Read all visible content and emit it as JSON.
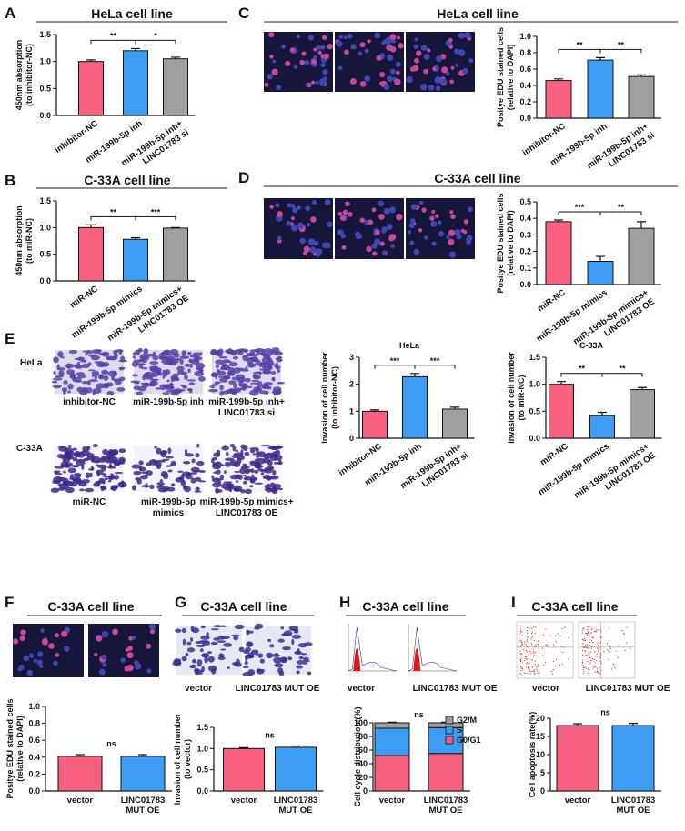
{
  "panels": [
    {
      "letter": "A",
      "title": "HeLa cell line"
    },
    {
      "letter": "B",
      "title": "C-33A cell line"
    },
    {
      "letter": "C",
      "title": "HeLa cell line"
    },
    {
      "letter": "D",
      "title": "C-33A cell line"
    },
    {
      "letter": "E"
    },
    {
      "letter": "F",
      "title": "C-33A cell line"
    },
    {
      "letter": "G",
      "title": "C-33A cell line"
    },
    {
      "letter": "H",
      "title": "C-33A cell line"
    },
    {
      "letter": "I",
      "title": "C-33A cell line"
    }
  ],
  "image_labels": {
    "E_rows": [
      "HeLa",
      "C-33A"
    ],
    "E_captions": [
      [
        "inhibitor-NC"
      ],
      [
        "miR-199b-5p inh"
      ],
      [
        "miR-199b-5p inh+",
        "LINC01783 si"
      ],
      [
        "miR-NC"
      ],
      [
        "miR-199b-5p",
        "mimics"
      ],
      [
        "miR-199b-5p mimics+",
        "LINC01783 OE"
      ]
    ],
    "G": [
      "vector",
      "LINC01783 MUT OE"
    ],
    "H": [
      "vector",
      "LINC01783 MUT OE"
    ],
    "I": [
      "vector",
      "LINC01783 MUT OE"
    ]
  },
  "chart_data": [
    {
      "type": "bar",
      "y_label": [
        "450nm absorption",
        "(to inhibitor-NC)"
      ],
      "categories": [
        [
          "inhibitor-NC"
        ],
        [
          "miR-199b-5p inh"
        ],
        [
          "miR-199b-5p inh+",
          "LINC01783 si"
        ]
      ],
      "values": [
        1.0,
        1.2,
        1.05
      ],
      "errors": [
        0.03,
        0.04,
        0.03
      ],
      "colors": [
        "#f7617f",
        "#3d9df5",
        "#a0a0a0"
      ],
      "ylim": [
        0,
        1.5
      ],
      "yticks": [
        {
          "value": 0,
          "label": "0.0"
        },
        0.5,
        {
          "value": 1,
          "label": "1.0"
        },
        1.5
      ],
      "significance": [
        "**",
        "*"
      ]
    },
    {
      "type": "bar",
      "y_label": [
        "450nm absorption",
        "(to miR-NC)"
      ],
      "categories": [
        [
          "miR-NC"
        ],
        [
          "miR-199b-5p mimics"
        ],
        [
          "miR-199b-5p mimics+",
          "LINC01783 OE"
        ]
      ],
      "values": [
        1.0,
        0.78,
        0.99
      ],
      "errors": [
        0.05,
        0.03,
        0.01
      ],
      "colors": [
        "#f7617f",
        "#3d9df5",
        "#a0a0a0"
      ],
      "ylim": [
        0,
        1.5
      ],
      "yticks": [
        {
          "value": 0,
          "label": "0.0"
        },
        0.5,
        {
          "value": 1,
          "label": "1.0"
        },
        1.5
      ],
      "significance": [
        "**",
        "***"
      ]
    },
    {
      "type": "bar",
      "y_label": [
        "Positye EDU stained cells",
        "(relative to DAPI)"
      ],
      "categories": [
        [
          "inhibitor-NC"
        ],
        [
          "miR-199b-5p inh"
        ],
        [
          "miR-199b-5p inh+",
          "LINC01783 si"
        ]
      ],
      "values": [
        0.46,
        0.71,
        0.51
      ],
      "errors": [
        0.02,
        0.03,
        0.02
      ],
      "colors": [
        "#f7617f",
        "#3d9df5",
        "#a0a0a0"
      ],
      "ylim": [
        0,
        1
      ],
      "yticks": [
        {
          "value": 0,
          "label": "0.0"
        },
        0.2,
        0.4,
        0.6,
        0.8,
        {
          "value": 1,
          "label": "1.0"
        }
      ],
      "significance": [
        "**",
        "**"
      ]
    },
    {
      "type": "bar",
      "y_label": [
        "Positye EDU stained cells",
        "(relative to DAPI)"
      ],
      "categories": [
        [
          "miR-NC"
        ],
        [
          "miR-199b-5p mimics"
        ],
        [
          "miR-199b-5p mimics+",
          "LINC01783 OE"
        ]
      ],
      "values": [
        0.38,
        0.14,
        0.34
      ],
      "errors": [
        0.01,
        0.03,
        0.04
      ],
      "colors": [
        "#f7617f",
        "#3d9df5",
        "#a0a0a0"
      ],
      "ylim": [
        0,
        0.5
      ],
      "yticks": [
        {
          "value": 0,
          "label": "0.0"
        },
        0.1,
        0.2,
        0.3,
        0.4,
        0.5
      ],
      "significance": [
        "***",
        "**"
      ]
    },
    {
      "type": "bar",
      "title": "HeLa",
      "y_label": [
        "Invasion of cell number",
        "(to inhibitor-NC)"
      ],
      "categories": [
        [
          "inhibitor-NC"
        ],
        [
          "miR-199b-5p inh"
        ],
        [
          "miR-199b-5p inh+",
          "LINC01783 si"
        ]
      ],
      "values": [
        1.0,
        2.28,
        1.08
      ],
      "errors": [
        0.05,
        0.12,
        0.07
      ],
      "colors": [
        "#f7617f",
        "#3d9df5",
        "#a0a0a0"
      ],
      "ylim": [
        0,
        3
      ],
      "yticks": [
        0,
        1,
        2,
        3
      ],
      "significance": [
        "***",
        "***"
      ]
    },
    {
      "type": "bar",
      "title": "C-33A",
      "y_label": [
        "Invasion of cell number",
        "(to miR-NC)"
      ],
      "categories": [
        [
          "miR-NC"
        ],
        [
          "miR-199b-5p mimics"
        ],
        [
          "miR-199b-5p mimics+",
          "LINC01783 OE"
        ]
      ],
      "values": [
        1.0,
        0.42,
        0.9
      ],
      "errors": [
        0.05,
        0.06,
        0.04
      ],
      "colors": [
        "#f7617f",
        "#3d9df5",
        "#a0a0a0"
      ],
      "ylim": [
        0,
        1.5
      ],
      "yticks": [
        {
          "value": 0,
          "label": "0.0"
        },
        0.5,
        {
          "value": 1,
          "label": "1.0"
        },
        1.5
      ],
      "significance": [
        "**",
        "**"
      ]
    },
    {
      "type": "bar",
      "y_label": [
        "Positye EDU stained cells",
        "(relative to DAPI)"
      ],
      "categories": [
        [
          "vector"
        ],
        [
          "LINC01783",
          "MUT OE"
        ]
      ],
      "values": [
        0.41,
        0.41
      ],
      "errors": [
        0.02,
        0.02
      ],
      "colors": [
        "#f7617f",
        "#3d9df5"
      ],
      "ylim": [
        0,
        1
      ],
      "yticks": [
        {
          "value": 0,
          "label": "0.0"
        },
        0.2,
        0.4,
        0.6,
        0.8,
        {
          "value": 1,
          "label": "1.0"
        }
      ],
      "significance": [
        "ns"
      ]
    },
    {
      "type": "bar",
      "y_label": [
        "Invasion of cell number",
        "(to vector)"
      ],
      "categories": [
        [
          "vector"
        ],
        [
          "LINC01783",
          "MUT OE"
        ]
      ],
      "values": [
        1.0,
        1.03
      ],
      "errors": [
        0.02,
        0.03
      ],
      "colors": [
        "#f7617f",
        "#3d9df5"
      ],
      "ylim": [
        0,
        1.5
      ],
      "yticks": [
        {
          "value": 0,
          "label": "0.0"
        },
        0.5,
        {
          "value": 1,
          "label": "1.0"
        },
        1.5
      ],
      "significance": [
        "ns"
      ]
    },
    {
      "type": "stacked",
      "y_label": [
        "Cell cycle distribution (%)"
      ],
      "categories": [
        [
          "vector"
        ],
        [
          "LINC01783",
          "MUT OE"
        ]
      ],
      "series": [
        {
          "name": "G0/G1",
          "color": "#f7617f",
          "values": [
            52,
            55
          ],
          "errors": [
            2,
            4
          ]
        },
        {
          "name": "S",
          "color": "#3d9df5",
          "values": [
            40,
            38
          ],
          "errors": [
            2,
            3
          ]
        },
        {
          "name": "G2/M",
          "color": "#a0a0a0",
          "values": [
            8,
            7
          ],
          "errors": [
            1,
            1
          ]
        }
      ],
      "ylim": [
        0,
        100
      ],
      "yticks": [
        0,
        20,
        40,
        60,
        80,
        100
      ],
      "significance": [
        "ns"
      ]
    },
    {
      "type": "bar",
      "y_label": [
        "Cell apoptosis rate(%)"
      ],
      "categories": [
        [
          "vector"
        ],
        [
          "LINC01783",
          "MUT OE"
        ]
      ],
      "values": [
        18,
        18
      ],
      "errors": [
        0.5,
        0.6
      ],
      "colors": [
        "#f7617f",
        "#3d9df5"
      ],
      "ylim": [
        0,
        20
      ],
      "yticks": [
        0,
        5,
        10,
        15,
        20
      ],
      "significance": [
        "ns"
      ]
    }
  ]
}
